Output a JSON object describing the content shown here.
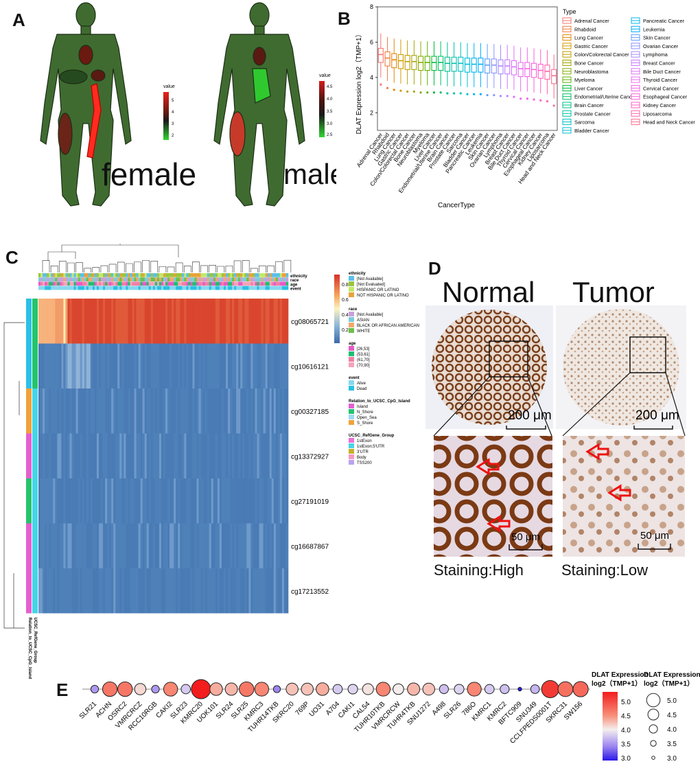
{
  "panels": {
    "a": "A",
    "b": "B",
    "c": "C",
    "d": "D",
    "e": "E"
  },
  "colors": {
    "high": "#e8231c",
    "mid": "#1f1f1f",
    "low": "#2fc92f",
    "body": "#3f6b30",
    "bodyDark": "#264a1f",
    "heatHigh": "#d7452c",
    "heatLow": "#4c7fb8"
  },
  "bodymap": {
    "female": {
      "label": "female",
      "legend_title": "value",
      "ticks": [
        "5",
        "4",
        "3",
        "2"
      ]
    },
    "male": {
      "label": "male",
      "legend_title": "value",
      "ticks": [
        "4.5",
        "4.0",
        "3.5",
        "3.0",
        "2.5"
      ]
    }
  },
  "chart_data": [
    {
      "type": "box",
      "panel": "B",
      "ylabel": "DLAT Expression  log2（TMP+1）",
      "xlabel": "CancerType",
      "ylim": [
        1,
        8
      ],
      "yticks": [
        "2",
        "4",
        "6",
        "8"
      ],
      "legend_title": "Type",
      "categories": [
        "Adrenal Cancer",
        "Rhabdoid",
        "Lung Cancer",
        "Gastric Cancer",
        "Colon/Colorectal Cancer",
        "Bone Cancer",
        "Neuroblastoma",
        "Myeloma",
        "Liver Cancer",
        "Endometrial/Uterine Cancer",
        "Brain Cancer",
        "Prostate Cancer",
        "Sarcoma",
        "Bladder Cancer",
        "Pancreatic Cancer",
        "Leukemia",
        "Skin Cancer",
        "Ovarian Cancer",
        "Lymphoma",
        "Breast Cancer",
        "Bile Duct Cancer",
        "Thyroid Cancer",
        "Cervical Cancer",
        "Esophageal Cancer",
        "Kidney Cancer",
        "Liposarcoma",
        "Head and Neck Cancer"
      ],
      "medians": [
        5.3,
        5.1,
        5.0,
        4.95,
        4.9,
        4.9,
        4.85,
        4.85,
        4.85,
        4.85,
        4.8,
        4.8,
        4.8,
        4.75,
        4.75,
        4.75,
        4.7,
        4.7,
        4.65,
        4.65,
        4.6,
        4.5,
        4.5,
        4.45,
        4.4,
        4.35,
        4.1
      ],
      "colors": [
        "#f8766d",
        "#f07d43",
        "#e58700",
        "#d29900",
        "#c09b00",
        "#a3a500",
        "#86ac00",
        "#5bb300",
        "#00ba38",
        "#00be67",
        "#00c08b",
        "#00c1a9",
        "#00bfc4",
        "#00bbdb",
        "#00b6eb",
        "#00acfc",
        "#619cff",
        "#8b93ff",
        "#a58aff",
        "#c77cff",
        "#db72fb",
        "#e76bf3",
        "#f564e3",
        "#fa62db",
        "#ff61c3",
        "#ff66a8",
        "#fb6f8e"
      ]
    },
    {
      "type": "heatmap",
      "panel": "C",
      "rows": [
        "cg08065721",
        "cg10616121",
        "cg00327185",
        "cg13372927",
        "cg27191019",
        "cg16687867",
        "cg17213552"
      ],
      "annotation_tracks": [
        "ethnicity",
        "race",
        "age",
        "event"
      ],
      "left_tracks": [
        "UCSC_RefGene_Group",
        "Relation_to_UCSC_CpG_Island"
      ],
      "colorbar_ticks": [
        "0.8",
        "0.6",
        "0.4",
        "0.2"
      ],
      "row_mean_values": [
        0.85,
        0.12,
        0.07,
        0.07,
        0.08,
        0.07,
        0.07
      ],
      "legend": [
        {
          "title": "ethnicity",
          "items": [
            {
              "label": "[Not Available]",
              "color": "#5bc0eb"
            },
            {
              "label": "[Not Evaluated]",
              "color": "#9bc53d"
            },
            {
              "label": "HISPANIC OR LATINO",
              "color": "#c3e86b"
            },
            {
              "label": "NOT HISPANIC OR LATINO",
              "color": "#e8a33a"
            }
          ]
        },
        {
          "title": "race",
          "items": [
            {
              "label": "[Not Available]",
              "color": "#c9a0dc"
            },
            {
              "label": "ASIAN",
              "color": "#7ecbd9"
            },
            {
              "label": "BLACK OR AFRICAN AMERICAN",
              "color": "#f1a86b"
            },
            {
              "label": "WHITE",
              "color": "#6cc04a"
            }
          ]
        },
        {
          "title": "age",
          "items": [
            {
              "label": "[26,53]",
              "color": "#e55cc7"
            },
            {
              "label": "(53,61]",
              "color": "#1fbf6e"
            },
            {
              "label": "(61,70]",
              "color": "#f17fa6"
            },
            {
              "label": "(70,90]",
              "color": "#f4a3b8"
            }
          ]
        },
        {
          "title": "event",
          "items": [
            {
              "label": "Alive",
              "color": "#86d8f0"
            },
            {
              "label": "Dead",
              "color": "#2bc0e4"
            }
          ]
        },
        {
          "title": "Relation_to_UCSC_CpG_Island",
          "items": [
            {
              "label": "Island",
              "color": "#e45fd0"
            },
            {
              "label": "N_Shore",
              "color": "#24c46d"
            },
            {
              "label": "Open_Sea",
              "color": "#9ed9f3"
            },
            {
              "label": "S_Shore",
              "color": "#f0a23a"
            }
          ]
        },
        {
          "title": "UCSC_RefGene_Group",
          "items": [
            {
              "label": "1stExon",
              "color": "#ef6fd9"
            },
            {
              "label": "1stExon;5'UTR",
              "color": "#47d4e8"
            },
            {
              "label": "3'UTR",
              "color": "#c4b12a"
            },
            {
              "label": "Body",
              "color": "#f39ac4"
            },
            {
              "label": "TSS200",
              "color": "#b9a3f0"
            }
          ]
        }
      ]
    },
    {
      "type": "bubble",
      "panel": "E",
      "categories": [
        "SLR21",
        "ACHN",
        "OSRC2",
        "VMRCRCZ",
        "RCC10RGB",
        "CAKI2",
        "SLR23",
        "KMRC20",
        "UOK101",
        "SLR24",
        "SLR25",
        "KMRC3",
        "TUHR14TKB",
        "SKRC20",
        "769P",
        "UO31",
        "A704",
        "CAKI1",
        "CAL54",
        "TUHR10TKB",
        "VMRCRCW",
        "TUHR4TKB",
        "SNU1272",
        "A498",
        "SLR26",
        "786O",
        "KMRC1",
        "KMRC2",
        "BFTC909",
        "SNU349",
        "CCLFPEDS0001T",
        "SKRC31",
        "SW156"
      ],
      "values": [
        3.55,
        4.6,
        4.6,
        4.1,
        3.55,
        4.5,
        3.8,
        5.3,
        4.3,
        4.25,
        4.6,
        4.5,
        3.45,
        4.2,
        4.2,
        4.3,
        3.8,
        3.85,
        4.05,
        4.5,
        4.0,
        4.25,
        4.2,
        3.75,
        3.85,
        4.5,
        3.8,
        3.75,
        2.95,
        3.7,
        5.0,
        4.65,
        4.7
      ],
      "color_legend_title": "DLAT Expression log2（TMP+1）",
      "size_legend_title": "DLAT Expression log2（TMP+1）",
      "color_ticks": [
        "5.0",
        "4.5",
        "4.0",
        "3.5",
        "3.0"
      ],
      "size_ticks": [
        "5.0",
        "4.5",
        "4.0",
        "3.5",
        "3.0"
      ]
    }
  ],
  "ihc": {
    "normal": {
      "title": "Normal",
      "scale_large": "200 μm",
      "scale_small": "50 μm",
      "caption": "Staining:High"
    },
    "tumor": {
      "title": "Tumor",
      "scale_large": "200 μm",
      "scale_small": "50 μm",
      "caption": "Staining:Low"
    }
  }
}
